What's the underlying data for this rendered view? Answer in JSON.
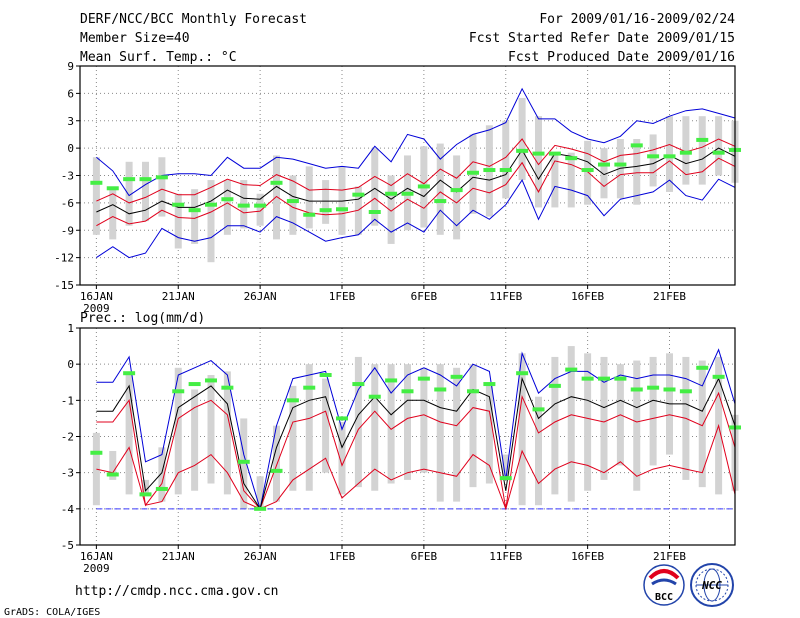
{
  "header": {
    "title": "DERF/NCC/BCC Monthly Forecast",
    "member_size": "Member Size=40",
    "variable1": "Mean Surf. Temp.: °C",
    "period": "For 2009/01/16-2009/02/24",
    "started": "Fcst Started Refer Date 2009/01/15",
    "produced": "Fcst Produced Date 2009/01/16"
  },
  "footer": {
    "url": "http://cmdp.ncc.cma.gov.cn",
    "credit": "GrADS: COLA/IGES",
    "logo_bcc": "BCC",
    "logo_ncc": "NCC"
  },
  "colors": {
    "box": "#d3d3d3",
    "mean": "#000000",
    "spread": "#e0001c",
    "envelope": "#0000d8",
    "marker": "#44ee44",
    "grid": "#8a8a8a",
    "floor": "#3a3aff"
  },
  "chart_data": [
    {
      "type": "line",
      "title": "Mean Surf. Temp.: °C",
      "ylabel": "°C",
      "ylim": [
        -15,
        9
      ],
      "yticks": [
        9,
        6,
        3,
        0,
        -3,
        -6,
        -9,
        -12,
        -15
      ],
      "xlim": [
        0,
        40
      ],
      "xticks": [
        {
          "pos": 1,
          "label": "16JAN",
          "sub": "2009"
        },
        {
          "pos": 6,
          "label": "21JAN"
        },
        {
          "pos": 11,
          "label": "26JAN"
        },
        {
          "pos": 16,
          "label": "1FEB"
        },
        {
          "pos": 21,
          "label": "6FEB"
        },
        {
          "pos": 26,
          "label": "11FEB"
        },
        {
          "pos": 31,
          "label": "16FEB"
        },
        {
          "pos": 36,
          "label": "21FEB"
        }
      ],
      "x": [
        1,
        2,
        3,
        4,
        5,
        6,
        7,
        8,
        9,
        10,
        11,
        12,
        13,
        14,
        15,
        16,
        17,
        18,
        19,
        20,
        21,
        22,
        23,
        24,
        25,
        26,
        27,
        28,
        29,
        30,
        31,
        32,
        33,
        34,
        35,
        36,
        37,
        38,
        39,
        40
      ],
      "series": [
        {
          "name": "max",
          "values": [
            -12,
            -10.8,
            -12,
            -11.5,
            -8.8,
            -9.8,
            -10.2,
            -9.8,
            -8.5,
            -8.5,
            -9.2,
            -7.5,
            -8.2,
            -9.2,
            -10.2,
            -9.8,
            -9.5,
            -7.8,
            -9.2,
            -8.2,
            -9.2,
            -6.8,
            -8.5,
            -6.8,
            -7.8,
            -6.2,
            -3.5,
            -7.8,
            -4.2,
            -4.6,
            -5.2,
            -7.4,
            -5.6,
            -5.2,
            -4.8,
            -3.5,
            -5.2,
            -5.7,
            -3.4,
            -4.3
          ]
        },
        {
          "name": "p25",
          "values": [
            -8.5,
            -7.5,
            -8.3,
            -8.0,
            -6.8,
            -7.6,
            -7.7,
            -7.0,
            -6.0,
            -7.1,
            -6.9,
            -5.3,
            -6.5,
            -7.1,
            -7.3,
            -7.2,
            -6.8,
            -5.5,
            -6.9,
            -5.6,
            -6.6,
            -4.8,
            -6.0,
            -4.4,
            -4.9,
            -4.0,
            -1.6,
            -4.8,
            -1.4,
            -1.8,
            -2.6,
            -4.2,
            -2.9,
            -2.7,
            -2.7,
            -1.4,
            -2.9,
            -2.6,
            -1.1,
            -2.0
          ]
        },
        {
          "name": "mean",
          "values": [
            -7.0,
            -6.2,
            -7.2,
            -6.8,
            -5.8,
            -6.5,
            -6.5,
            -5.8,
            -4.6,
            -5.5,
            -5.6,
            -4.2,
            -5.3,
            -5.8,
            -5.8,
            -5.8,
            -5.6,
            -4.4,
            -5.6,
            -4.4,
            -5.3,
            -3.5,
            -4.8,
            -3.2,
            -3.5,
            -2.9,
            -0.2,
            -3.4,
            -0.6,
            -0.9,
            -1.5,
            -2.9,
            -2.2,
            -2.0,
            -1.7,
            -0.8,
            -1.7,
            -1.2,
            0.0,
            -0.9
          ]
        },
        {
          "name": "p75",
          "values": [
            -5.8,
            -5.0,
            -6.0,
            -5.4,
            -4.5,
            -5.1,
            -5.1,
            -4.3,
            -3.4,
            -4.0,
            -4.1,
            -2.9,
            -3.6,
            -4.6,
            -4.5,
            -4.6,
            -4.3,
            -3.1,
            -4.1,
            -2.8,
            -3.9,
            -2.3,
            -3.3,
            -1.5,
            -2.0,
            -1.0,
            1.0,
            -1.8,
            0.3,
            -0.1,
            -0.6,
            -1.5,
            -0.8,
            -0.6,
            -0.2,
            0.4,
            -0.4,
            0.1,
            1.0,
            0.2
          ]
        },
        {
          "name": "min",
          "values": [
            -1.0,
            -2.5,
            -5.2,
            -4.0,
            -3.0,
            -2.8,
            -2.8,
            -3.0,
            -1.0,
            -2.2,
            -2.2,
            -1.0,
            -1.2,
            -1.7,
            -2.2,
            -2.0,
            -2.2,
            0.2,
            -1.5,
            1.5,
            1.0,
            -1.2,
            0.4,
            1.5,
            2.0,
            2.8,
            6.5,
            3.2,
            3.2,
            1.8,
            1.0,
            0.6,
            1.3,
            3.0,
            2.7,
            3.5,
            4.1,
            4.3,
            3.8,
            3.3
          ]
        },
        {
          "name": "box_low",
          "values": [
            -9.5,
            -10,
            -8.5,
            -8,
            -7.5,
            -11,
            -10.5,
            -12.5,
            -9.5,
            -8.8,
            -8.5,
            -10,
            -9.5,
            -8.8,
            -8.3,
            -9.5,
            -9.5,
            -8.5,
            -10.5,
            -9,
            -8.7,
            -9.5,
            -10,
            -7.2,
            -7.5,
            -5.5,
            -3.5,
            -6.5,
            -6.5,
            -6.5,
            -6.2,
            -5.5,
            -5.5,
            -6.2,
            -4.2,
            -4.8,
            -4.0,
            -4.0,
            -3.0,
            -3.8
          ]
        },
        {
          "name": "box_high",
          "values": [
            -1,
            -4.5,
            -1.5,
            -1.5,
            -1,
            -5,
            -4.5,
            -3.5,
            -3.5,
            -3.5,
            -5,
            -0.8,
            -3,
            -2,
            -3.5,
            -2,
            -4.2,
            0,
            -3,
            -0.8,
            0.2,
            0.5,
            -0.8,
            1.5,
            2.5,
            3.0,
            5.5,
            3.5,
            -0.5,
            -0.5,
            0.8,
            0,
            1.0,
            1.0,
            1.5,
            3.5,
            3.5,
            3.5,
            3.5,
            3.0
          ]
        },
        {
          "name": "marker",
          "values": [
            -3.8,
            -4.4,
            -3.4,
            -3.4,
            -3.2,
            -6.2,
            -6.8,
            -6.2,
            -5.6,
            -6.3,
            -6.3,
            -3.8,
            -5.8,
            -7.3,
            -6.8,
            -6.7,
            -5.1,
            -7.0,
            -5.0,
            -5.0,
            -4.2,
            -5.8,
            -4.6,
            -2.7,
            -2.4,
            -2.4,
            -0.3,
            -0.6,
            -0.6,
            -1.1,
            -2.4,
            -1.8,
            -1.8,
            0.3,
            -0.9,
            -0.9,
            -0.5,
            0.9,
            -0.5,
            -0.2
          ]
        }
      ]
    },
    {
      "type": "line",
      "title": "Prec.: log(mm/d)",
      "ylabel": "log(mm/d)",
      "ylim": [
        -5,
        1
      ],
      "yticks": [
        1,
        0,
        -1,
        -2,
        -3,
        -4,
        -5
      ],
      "xlim": [
        0,
        40
      ],
      "xticks": [
        {
          "pos": 1,
          "label": "16JAN",
          "sub": "2009"
        },
        {
          "pos": 6,
          "label": "21JAN"
        },
        {
          "pos": 11,
          "label": "26JAN"
        },
        {
          "pos": 16,
          "label": "1FEB"
        },
        {
          "pos": 21,
          "label": "6FEB"
        },
        {
          "pos": 26,
          "label": "11FEB"
        },
        {
          "pos": 31,
          "label": "16FEB"
        },
        {
          "pos": 36,
          "label": "21FEB"
        }
      ],
      "x": [
        1,
        2,
        3,
        4,
        5,
        6,
        7,
        8,
        9,
        10,
        11,
        12,
        13,
        14,
        15,
        16,
        17,
        18,
        19,
        20,
        21,
        22,
        23,
        24,
        25,
        26,
        27,
        28,
        29,
        30,
        31,
        32,
        33,
        34,
        35,
        36,
        37,
        38,
        39,
        40
      ],
      "series": [
        {
          "name": "max",
          "values": [
            -0.5,
            -0.5,
            0.2,
            -2.7,
            -2.5,
            -0.3,
            -0.1,
            0.1,
            -0.3,
            -2.5,
            -4.0,
            -1.7,
            -0.4,
            -0.3,
            -0.2,
            -1.8,
            -0.7,
            -0.1,
            -0.8,
            -0.3,
            -0.1,
            -0.3,
            -0.6,
            0.0,
            -0.2,
            -3.2,
            0.3,
            -0.8,
            -0.4,
            -0.2,
            -0.2,
            -0.5,
            -0.3,
            -0.4,
            -0.3,
            -0.3,
            -0.4,
            -0.6,
            0.4,
            -1.1
          ]
        },
        {
          "name": "p25",
          "values": [
            -1.6,
            -1.6,
            -1.0,
            -3.9,
            -3.3,
            -1.5,
            -1.2,
            -1.0,
            -1.4,
            -3.5,
            -4.0,
            -2.8,
            -1.6,
            -1.5,
            -1.3,
            -2.8,
            -1.8,
            -1.3,
            -1.8,
            -1.5,
            -1.4,
            -1.6,
            -1.7,
            -1.2,
            -1.3,
            -4.0,
            -0.9,
            -1.9,
            -1.6,
            -1.4,
            -1.5,
            -1.6,
            -1.4,
            -1.6,
            -1.5,
            -1.4,
            -1.5,
            -1.7,
            -0.8,
            -2.3
          ]
        },
        {
          "name": "mean",
          "values": [
            -1.3,
            -1.3,
            -0.6,
            -3.5,
            -3.0,
            -1.2,
            -0.9,
            -0.6,
            -1.1,
            -3.3,
            -4.0,
            -2.3,
            -1.2,
            -1.0,
            -0.9,
            -2.3,
            -1.4,
            -0.9,
            -1.4,
            -1.0,
            -1.0,
            -1.2,
            -1.3,
            -0.7,
            -0.9,
            -3.5,
            -0.4,
            -1.5,
            -1.1,
            -0.9,
            -1.0,
            -1.2,
            -1.0,
            -1.2,
            -1.0,
            -1.1,
            -1.1,
            -1.3,
            -0.4,
            -1.7
          ]
        },
        {
          "name": "min",
          "values": [
            -2.9,
            -3.0,
            -2.3,
            -3.9,
            -3.8,
            -3.0,
            -2.8,
            -2.5,
            -3.0,
            -3.8,
            -4.0,
            -3.8,
            -3.2,
            -2.9,
            -2.6,
            -3.7,
            -3.3,
            -2.9,
            -3.2,
            -3.0,
            -2.9,
            -3.0,
            -3.1,
            -2.5,
            -2.8,
            -4.0,
            -2.4,
            -3.3,
            -2.9,
            -2.7,
            -2.8,
            -3.0,
            -2.7,
            -3.1,
            -2.9,
            -2.8,
            -2.9,
            -3.0,
            -1.7,
            -3.6
          ]
        },
        {
          "name": "box_low",
          "values": [
            -3.9,
            -3.2,
            -3.6,
            -3.6,
            -3.8,
            -3.6,
            -3.5,
            -3.3,
            -3.6,
            -4.0,
            -4.0,
            -3.8,
            -3.5,
            -3.5,
            -3.0,
            -3.6,
            -3.4,
            -3.5,
            -3.3,
            -3.2,
            -3.0,
            -3.8,
            -3.8,
            -3.4,
            -3.3,
            -3.1,
            -3.9,
            -3.9,
            -3.6,
            -3.8,
            -3.5,
            -3.2,
            -2.8,
            -3.5,
            -2.8,
            -2.5,
            -3.2,
            -3.4,
            -3.6,
            -3.5
          ]
        },
        {
          "name": "box_high",
          "values": [
            -1.9,
            -2.4,
            -0.3,
            -3.2,
            -2.3,
            -0.1,
            -0.7,
            -0.3,
            -0.2,
            -1.5,
            -3.1,
            -1.7,
            -0.6,
            0.0,
            -0.4,
            -1.6,
            0.2,
            0.0,
            0.0,
            0.0,
            -0.1,
            0.0,
            -0.1,
            0.0,
            -0.5,
            -2.5,
            0.3,
            -0.9,
            0.2,
            0.5,
            0.3,
            0.2,
            0.0,
            0.1,
            0.2,
            0.3,
            0.2,
            0.1,
            0.2,
            -1.4
          ]
        },
        {
          "name": "marker",
          "values": [
            -2.45,
            -3.05,
            -0.25,
            -3.6,
            -3.45,
            -0.75,
            -0.55,
            -0.45,
            -0.65,
            -2.7,
            -4.0,
            -2.95,
            -1.0,
            -0.65,
            -0.3,
            -1.5,
            -0.55,
            -0.9,
            -0.45,
            -0.75,
            -0.4,
            -0.7,
            -0.35,
            -0.75,
            -0.55,
            -3.15,
            -0.25,
            -1.25,
            -0.6,
            -0.15,
            -0.4,
            -0.4,
            -0.4,
            -0.7,
            -0.65,
            -0.7,
            -0.75,
            -0.1,
            -0.35,
            -1.75
          ]
        }
      ]
    }
  ]
}
